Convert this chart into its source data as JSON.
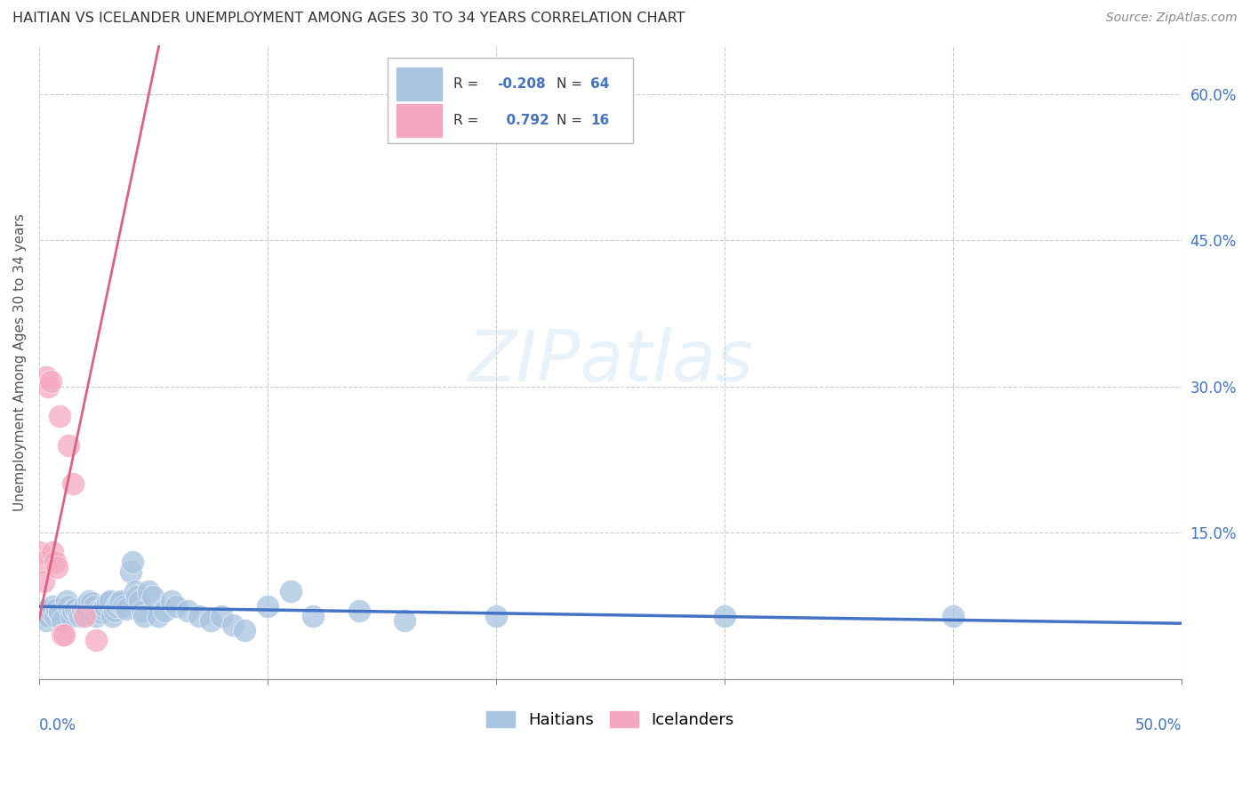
{
  "title": "HAITIAN VS ICELANDER UNEMPLOYMENT AMONG AGES 30 TO 34 YEARS CORRELATION CHART",
  "source": "Source: ZipAtlas.com",
  "ylabel": "Unemployment Among Ages 30 to 34 years",
  "haitian_color": "#a8c4e0",
  "icelander_color": "#f4a8c0",
  "haitian_line_color": "#4472c4",
  "icelander_line_color": "#e06080",
  "r_haitian": -0.208,
  "n_haitian": 64,
  "r_icelander": 0.792,
  "n_icelander": 16,
  "watermark": "ZIPatlas",
  "xlim": [
    0.0,
    0.5
  ],
  "ylim": [
    0.0,
    0.65
  ],
  "right_yticks": [
    0.0,
    0.15,
    0.3,
    0.45,
    0.6
  ],
  "right_yticklabels": [
    "",
    "15.0%",
    "30.0%",
    "45.0%",
    "60.0%"
  ],
  "haitian_x": [
    0.001,
    0.002,
    0.003,
    0.004,
    0.005,
    0.006,
    0.007,
    0.008,
    0.009,
    0.01,
    0.012,
    0.013,
    0.014,
    0.015,
    0.016,
    0.017,
    0.018,
    0.019,
    0.02,
    0.021,
    0.022,
    0.023,
    0.024,
    0.025,
    0.026,
    0.027,
    0.028,
    0.029,
    0.03,
    0.031,
    0.032,
    0.033,
    0.034,
    0.035,
    0.036,
    0.037,
    0.038,
    0.04,
    0.041,
    0.042,
    0.043,
    0.044,
    0.045,
    0.046,
    0.048,
    0.05,
    0.052,
    0.055,
    0.058,
    0.06,
    0.065,
    0.07,
    0.075,
    0.08,
    0.085,
    0.09,
    0.1,
    0.11,
    0.12,
    0.14,
    0.16,
    0.2,
    0.3,
    0.4
  ],
  "haitian_y": [
    0.065,
    0.07,
    0.06,
    0.065,
    0.07,
    0.075,
    0.065,
    0.072,
    0.068,
    0.06,
    0.08,
    0.075,
    0.065,
    0.07,
    0.072,
    0.068,
    0.065,
    0.07,
    0.075,
    0.072,
    0.08,
    0.078,
    0.075,
    0.065,
    0.07,
    0.068,
    0.072,
    0.075,
    0.078,
    0.08,
    0.065,
    0.07,
    0.075,
    0.078,
    0.08,
    0.075,
    0.072,
    0.11,
    0.12,
    0.09,
    0.085,
    0.08,
    0.07,
    0.065,
    0.09,
    0.085,
    0.065,
    0.07,
    0.08,
    0.075,
    0.07,
    0.065,
    0.06,
    0.065,
    0.055,
    0.05,
    0.075,
    0.09,
    0.065,
    0.07,
    0.06,
    0.065,
    0.065,
    0.065
  ],
  "icelander_x": [
    0.0,
    0.001,
    0.002,
    0.003,
    0.004,
    0.005,
    0.006,
    0.007,
    0.008,
    0.009,
    0.01,
    0.011,
    0.013,
    0.015,
    0.02,
    0.025
  ],
  "icelander_y": [
    0.13,
    0.12,
    0.1,
    0.31,
    0.3,
    0.305,
    0.13,
    0.12,
    0.115,
    0.27,
    0.045,
    0.045,
    0.24,
    0.2,
    0.065,
    0.04
  ]
}
